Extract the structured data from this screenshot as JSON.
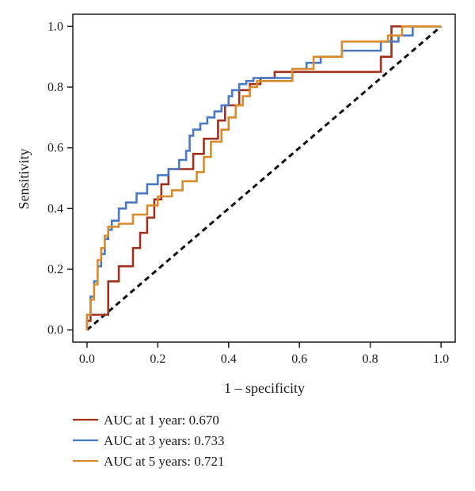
{
  "chart_data": {
    "type": "line",
    "title": "",
    "xlabel": "1 – specificity",
    "ylabel": "Sensitivity",
    "xlim": [
      -0.04,
      1.04
    ],
    "ylim": [
      -0.04,
      1.04
    ],
    "x_ticks": [
      0.0,
      0.2,
      0.4,
      0.6,
      0.8,
      1.0
    ],
    "x_tick_labels": [
      "0.0",
      "0.2",
      "0.4",
      "0.6",
      "0.8",
      "1.0"
    ],
    "y_ticks": [
      0.0,
      0.2,
      0.4,
      0.6,
      0.8,
      1.0
    ],
    "y_tick_labels": [
      "0.0",
      "0.2",
      "0.4",
      "0.6",
      "0.8",
      "1.0"
    ],
    "grid": false,
    "legend_position": "bottom-left, below plot",
    "reference_line": {
      "x": [
        0,
        1
      ],
      "y": [
        0,
        1
      ],
      "style": "dashed",
      "color": "#111111"
    },
    "series": [
      {
        "name": "AUC at 1 year: 0.670",
        "color": "#a0311c",
        "x": [
          0.0,
          0.0,
          0.01,
          0.01,
          0.06,
          0.06,
          0.09,
          0.09,
          0.13,
          0.13,
          0.15,
          0.15,
          0.17,
          0.17,
          0.19,
          0.19,
          0.21,
          0.21,
          0.23,
          0.23,
          0.3,
          0.3,
          0.33,
          0.33,
          0.37,
          0.37,
          0.39,
          0.39,
          0.43,
          0.43,
          0.46,
          0.46,
          0.49,
          0.49,
          0.53,
          0.53,
          0.59,
          0.59,
          0.83,
          0.83,
          0.86,
          0.86,
          1.0
        ],
        "y": [
          0.0,
          0.03,
          0.03,
          0.05,
          0.05,
          0.16,
          0.16,
          0.21,
          0.21,
          0.27,
          0.27,
          0.32,
          0.32,
          0.37,
          0.37,
          0.43,
          0.43,
          0.48,
          0.48,
          0.53,
          0.53,
          0.58,
          0.58,
          0.63,
          0.63,
          0.69,
          0.69,
          0.74,
          0.74,
          0.79,
          0.79,
          0.81,
          0.81,
          0.83,
          0.83,
          0.85,
          0.85,
          0.85,
          0.85,
          0.9,
          0.9,
          1.0,
          1.0
        ]
      },
      {
        "name": "AUC at 3 years: 0.733",
        "color": "#4a78c4",
        "x": [
          0.0,
          0.0,
          0.01,
          0.01,
          0.02,
          0.02,
          0.03,
          0.03,
          0.04,
          0.04,
          0.05,
          0.05,
          0.06,
          0.06,
          0.07,
          0.07,
          0.09,
          0.09,
          0.11,
          0.11,
          0.14,
          0.14,
          0.17,
          0.17,
          0.2,
          0.2,
          0.23,
          0.23,
          0.26,
          0.26,
          0.28,
          0.28,
          0.29,
          0.29,
          0.3,
          0.3,
          0.32,
          0.32,
          0.34,
          0.34,
          0.36,
          0.36,
          0.38,
          0.38,
          0.4,
          0.4,
          0.41,
          0.41,
          0.43,
          0.43,
          0.45,
          0.45,
          0.47,
          0.47,
          0.58,
          0.58,
          0.62,
          0.62,
          0.66,
          0.66,
          0.72,
          0.72,
          0.83,
          0.83,
          0.88,
          0.88,
          0.92,
          0.92,
          1.0
        ],
        "y": [
          0.0,
          0.05,
          0.05,
          0.11,
          0.11,
          0.16,
          0.16,
          0.21,
          0.21,
          0.25,
          0.25,
          0.3,
          0.3,
          0.33,
          0.33,
          0.36,
          0.36,
          0.4,
          0.4,
          0.42,
          0.42,
          0.45,
          0.45,
          0.48,
          0.48,
          0.51,
          0.51,
          0.53,
          0.53,
          0.56,
          0.56,
          0.59,
          0.59,
          0.64,
          0.64,
          0.66,
          0.66,
          0.68,
          0.68,
          0.7,
          0.7,
          0.72,
          0.72,
          0.74,
          0.74,
          0.77,
          0.77,
          0.79,
          0.79,
          0.81,
          0.81,
          0.82,
          0.82,
          0.83,
          0.83,
          0.86,
          0.86,
          0.88,
          0.88,
          0.9,
          0.9,
          0.92,
          0.92,
          0.95,
          0.95,
          0.97,
          0.97,
          1.0,
          1.0
        ]
      },
      {
        "name": "AUC at 5 years: 0.721",
        "color": "#d98a2b",
        "x": [
          0.0,
          0.0,
          0.01,
          0.01,
          0.02,
          0.02,
          0.03,
          0.03,
          0.04,
          0.04,
          0.05,
          0.05,
          0.06,
          0.06,
          0.09,
          0.09,
          0.13,
          0.13,
          0.17,
          0.17,
          0.2,
          0.2,
          0.24,
          0.24,
          0.27,
          0.27,
          0.31,
          0.31,
          0.33,
          0.33,
          0.35,
          0.35,
          0.38,
          0.38,
          0.4,
          0.4,
          0.42,
          0.42,
          0.44,
          0.44,
          0.46,
          0.46,
          0.48,
          0.48,
          0.58,
          0.58,
          0.64,
          0.64,
          0.72,
          0.72,
          0.85,
          0.85,
          0.89,
          0.89,
          1.0
        ],
        "y": [
          0.0,
          0.05,
          0.05,
          0.1,
          0.1,
          0.15,
          0.15,
          0.23,
          0.23,
          0.27,
          0.27,
          0.31,
          0.31,
          0.34,
          0.34,
          0.35,
          0.35,
          0.38,
          0.38,
          0.41,
          0.41,
          0.44,
          0.44,
          0.46,
          0.46,
          0.49,
          0.49,
          0.52,
          0.52,
          0.57,
          0.57,
          0.62,
          0.62,
          0.66,
          0.66,
          0.7,
          0.7,
          0.74,
          0.74,
          0.77,
          0.77,
          0.8,
          0.8,
          0.82,
          0.82,
          0.86,
          0.86,
          0.9,
          0.9,
          0.95,
          0.95,
          0.97,
          0.97,
          1.0,
          1.0
        ]
      }
    ]
  }
}
